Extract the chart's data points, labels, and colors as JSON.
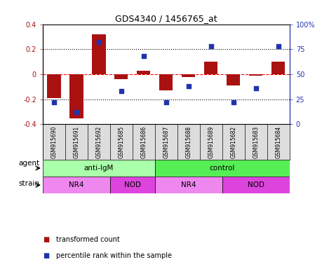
{
  "title": "GDS4340 / 1456765_at",
  "samples": [
    "GSM915690",
    "GSM915691",
    "GSM915692",
    "GSM915685",
    "GSM915686",
    "GSM915687",
    "GSM915688",
    "GSM915689",
    "GSM915682",
    "GSM915683",
    "GSM915684"
  ],
  "bar_values": [
    -0.19,
    -0.35,
    0.32,
    -0.04,
    0.03,
    -0.13,
    -0.02,
    0.1,
    -0.09,
    -0.01,
    0.1
  ],
  "dot_values": [
    22,
    12,
    82,
    33,
    68,
    22,
    38,
    78,
    22,
    36,
    78
  ],
  "bar_color": "#AA1111",
  "dot_color": "#2233AA",
  "ylim": [
    -0.4,
    0.4
  ],
  "y2lim": [
    0,
    100
  ],
  "yticks_left": [
    -0.2,
    0.0,
    0.2
  ],
  "ytick_labels_left": [
    "-0.2",
    "0",
    "0.2"
  ],
  "ytick_extremes": [
    -0.4,
    0.4
  ],
  "ytick_extreme_labels": [
    "-0.4",
    "0.4"
  ],
  "y2ticks": [
    0,
    25,
    50,
    75,
    100
  ],
  "y2ticklabels": [
    "0",
    "25",
    "50",
    "75",
    "100%"
  ],
  "hline_dotted": [
    -0.2,
    0.2
  ],
  "hline_dashed_red": 0.0,
  "agent_groups": [
    {
      "label": "anti-IgM",
      "start": 0,
      "end": 5,
      "color": "#AAFFAA"
    },
    {
      "label": "control",
      "start": 5,
      "end": 11,
      "color": "#55EE55"
    }
  ],
  "strain_groups": [
    {
      "label": "NR4",
      "start": 0,
      "end": 3,
      "color": "#EE88EE"
    },
    {
      "label": "NOD",
      "start": 3,
      "end": 5,
      "color": "#DD44DD"
    },
    {
      "label": "NR4",
      "start": 5,
      "end": 8,
      "color": "#EE88EE"
    },
    {
      "label": "NOD",
      "start": 8,
      "end": 11,
      "color": "#DD44DD"
    }
  ],
  "legend_items": [
    {
      "label": "transformed count",
      "color": "#AA1111"
    },
    {
      "label": "percentile rank within the sample",
      "color": "#2233AA"
    }
  ],
  "agent_label": "agent",
  "strain_label": "strain",
  "sample_box_color": "#DDDDDD",
  "background_color": "#FFFFFF"
}
